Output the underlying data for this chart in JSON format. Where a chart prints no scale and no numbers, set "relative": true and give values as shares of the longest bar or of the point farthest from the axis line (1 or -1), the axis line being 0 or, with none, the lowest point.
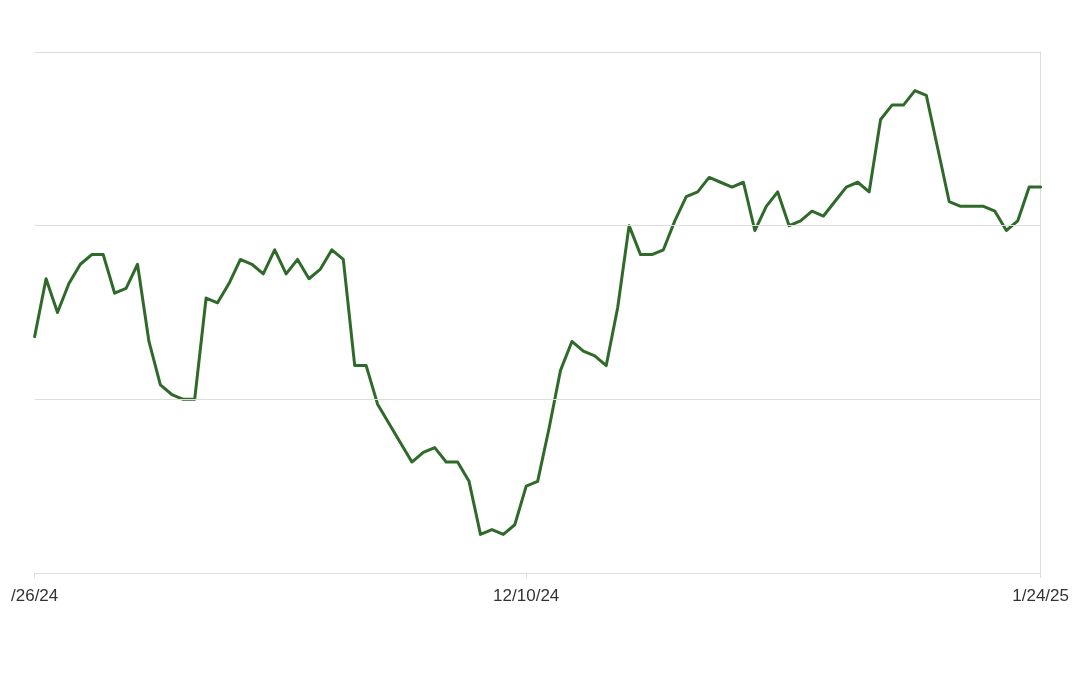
{
  "chart_data": {
    "type": "line",
    "relative": true,
    "ref_lines": [
      {
        "axis": "y",
        "value": 0.36,
        "color": "#dddddd"
      },
      {
        "axis": "y",
        "value": 0.72,
        "color": "#dddddd"
      },
      {
        "axis": "y",
        "value": 1.08,
        "color": "#dddddd"
      }
    ],
    "marker": "none",
    "line_style": "solid",
    "categories": [
      "/26/24",
      null,
      null,
      null,
      null,
      null,
      null,
      null,
      null,
      null,
      null,
      null,
      null,
      null,
      null,
      null,
      null,
      null,
      null,
      null,
      null,
      null,
      null,
      null,
      null,
      null,
      null,
      null,
      null,
      null,
      null,
      null,
      null,
      null,
      null,
      null,
      null,
      null,
      null,
      null,
      null,
      null,
      null,
      "12/10/24",
      null,
      null,
      null,
      null,
      null,
      null,
      null,
      null,
      null,
      null,
      null,
      null,
      null,
      null,
      null,
      null,
      null,
      null,
      null,
      null,
      null,
      null,
      null,
      null,
      null,
      null,
      null,
      null,
      null,
      null,
      null,
      null,
      null,
      null,
      null,
      null,
      null,
      null,
      null,
      null,
      null,
      null,
      null,
      null,
      "1/24/25"
    ],
    "series": [
      {
        "color": "#2f6a2a",
        "values": [
          0.49,
          0.61,
          0.54,
          0.6,
          0.64,
          0.66,
          0.66,
          0.58,
          0.59,
          0.64,
          0.48,
          0.39,
          0.37,
          0.36,
          0.36,
          0.57,
          0.56,
          0.6,
          0.65,
          0.64,
          0.62,
          0.67,
          0.62,
          0.65,
          0.61,
          0.63,
          0.67,
          0.65,
          0.43,
          0.43,
          0.35,
          0.31,
          0.27,
          0.23,
          0.25,
          0.26,
          0.23,
          0.23,
          0.19,
          0.08,
          0.09,
          0.08,
          0.1,
          0.18,
          0.19,
          0.3,
          0.42,
          0.48,
          0.46,
          0.45,
          0.43,
          0.55,
          0.72,
          0.66,
          0.66,
          0.67,
          0.73,
          0.78,
          0.79,
          0.82,
          0.81,
          0.8,
          0.81,
          0.71,
          0.76,
          0.79,
          0.72,
          0.73,
          0.75,
          0.74,
          0.77,
          0.8,
          0.81,
          0.79,
          0.94,
          0.97,
          0.97,
          1,
          0.99,
          0.88,
          0.77,
          0.76,
          0.76,
          0.76,
          0.75,
          0.71,
          0.73,
          0.8,
          0.8
        ]
      }
    ]
  }
}
